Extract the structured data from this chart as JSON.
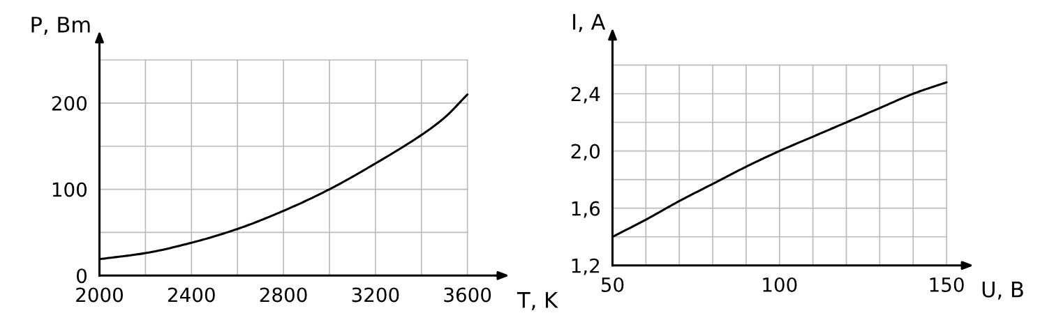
{
  "chart_data": [
    {
      "type": "line",
      "xlabel": "T, K",
      "ylabel": "P, Вm",
      "x": [
        2000,
        2200,
        2400,
        2600,
        2800,
        3000,
        3200,
        3400,
        3500,
        3600
      ],
      "series": [
        {
          "color": "#000000",
          "values": [
            19,
            26,
            38,
            54,
            75,
            100,
            130,
            163,
            183,
            210
          ]
        }
      ],
      "xlim": [
        2000,
        3730
      ],
      "ylim": [
        0,
        265
      ],
      "xticks": [
        2000,
        {
          "value": 2200,
          "label": null
        },
        2400,
        {
          "value": 2600,
          "label": null
        },
        2800,
        {
          "value": 3000,
          "label": null
        },
        3200,
        {
          "value": 3400,
          "label": null
        },
        3600
      ],
      "yticks": [
        0,
        {
          "value": 50,
          "label": null
        },
        100,
        {
          "value": 150,
          "label": null
        },
        200,
        {
          "value": 250,
          "label": null
        }
      ],
      "grid": true,
      "marker": "none",
      "line_style": "solid"
    },
    {
      "type": "line",
      "xlabel": "U, В",
      "ylabel": "I, А",
      "x": [
        50,
        60,
        70,
        80,
        90,
        100,
        110,
        120,
        130,
        140,
        150
      ],
      "series": [
        {
          "color": "#000000",
          "values": [
            1.4,
            1.52,
            1.65,
            1.77,
            1.89,
            2.0,
            2.1,
            2.2,
            2.3,
            2.4,
            2.48
          ]
        }
      ],
      "xlim": [
        50,
        155
      ],
      "ylim": [
        1.2,
        2.75
      ],
      "xticks": [
        50,
        {
          "value": 60,
          "label": null
        },
        {
          "value": 70,
          "label": null
        },
        {
          "value": 80,
          "label": null
        },
        {
          "value": 90,
          "label": null
        },
        100,
        {
          "value": 110,
          "label": null
        },
        {
          "value": 120,
          "label": null
        },
        {
          "value": 130,
          "label": null
        },
        {
          "value": 140,
          "label": null
        },
        150
      ],
      "yticks": [
        {
          "value": 1.2,
          "label": "1,2"
        },
        {
          "value": 1.4,
          "label": null
        },
        {
          "value": 1.6,
          "label": "1,6"
        },
        {
          "value": 1.8,
          "label": null
        },
        {
          "value": 2.0,
          "label": "2,0"
        },
        {
          "value": 2.2,
          "label": null
        },
        {
          "value": 2.4,
          "label": "2,4"
        },
        {
          "value": 2.6,
          "label": null
        }
      ],
      "grid": true,
      "marker": "none",
      "line_style": "solid"
    }
  ]
}
